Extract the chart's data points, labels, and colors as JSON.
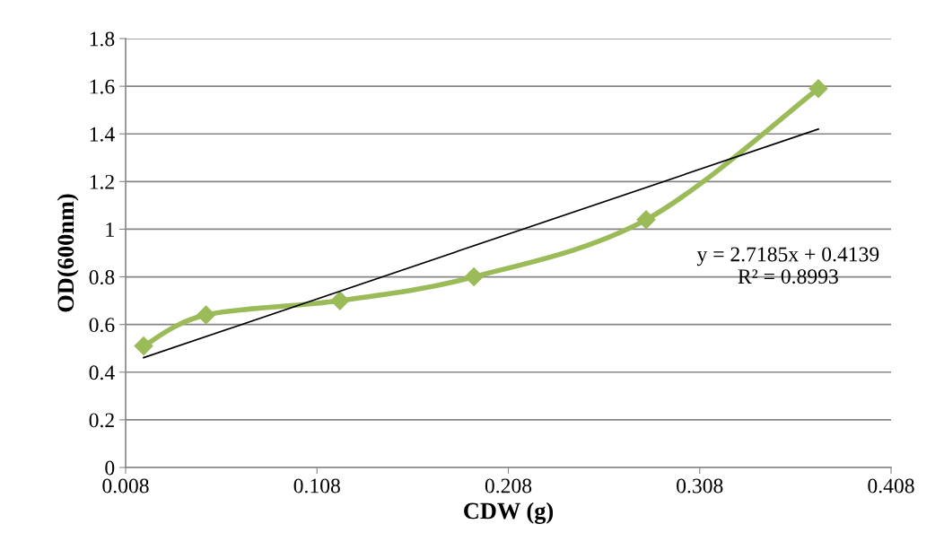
{
  "chart_data": {
    "type": "line",
    "xlabel": "CDW (g)",
    "ylabel": "OD(600nm)",
    "xlim": [
      0.008,
      0.408
    ],
    "xticks": [
      0.008,
      0.108,
      0.208,
      0.308,
      0.408
    ],
    "ylim": [
      0,
      1.8
    ],
    "yticks": [
      0,
      {
        "value": 0.2,
        "label": "0.2"
      },
      {
        "value": 0.4,
        "label": "0.4"
      },
      {
        "value": 0.6,
        "label": "0.6"
      },
      {
        "value": 0.8,
        "label": "0.8"
      },
      1,
      {
        "value": 1.2,
        "label": "1.2"
      },
      {
        "value": 1.4,
        "label": "1.4"
      },
      {
        "value": 1.6,
        "label": "1.6"
      },
      {
        "value": 1.8,
        "label": "1.8"
      }
    ],
    "grid": "y",
    "legend": false,
    "series": [
      {
        "color": "#9bbb59",
        "marker": "diamond",
        "x": [
          0.0174,
          0.05,
          0.12,
          0.19,
          0.28,
          0.37
        ],
        "values": [
          0.51,
          0.64,
          0.7,
          0.8,
          1.04,
          1.59
        ]
      },
      {
        "color": "#000000",
        "marker": "none",
        "x": [
          0.0174,
          0.37
        ],
        "values": [
          0.461,
          1.42
        ]
      }
    ],
    "annotations": [
      "y = 2.7185x + 0.4139\nR² = 0.8993"
    ]
  }
}
